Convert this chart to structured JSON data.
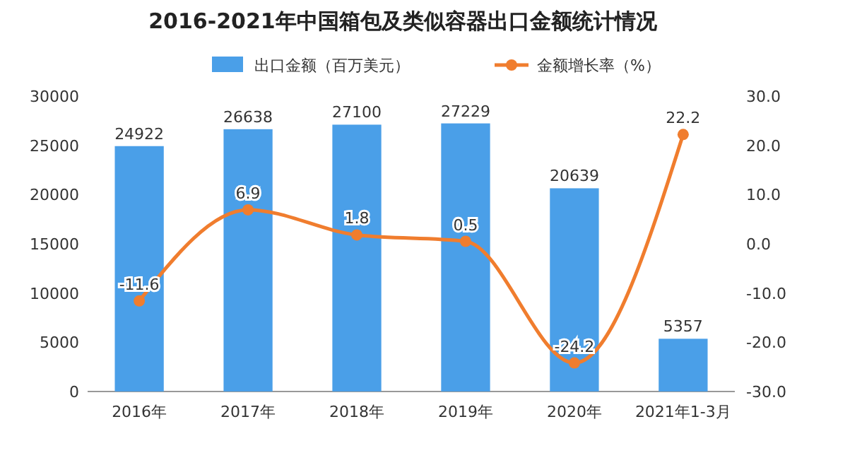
{
  "chart_data": {
    "type": "bar",
    "title": "2016-2021年中国箱包及类似容器出口金额统计情况",
    "categories": [
      "2016年",
      "2017年",
      "2018年",
      "2019年",
      "2020年",
      "2021年1-3月"
    ],
    "series": [
      {
        "name": "出口金额（百万美元）",
        "color": "#4a9fe8",
        "values": [
          24922,
          26638,
          27100,
          27229,
          20639,
          5357
        ]
      },
      {
        "name": "金额增长率（%）",
        "type": "line",
        "axis": "y2",
        "color": "#f07d2e",
        "values": [
          -11.6,
          6.9,
          1.8,
          0.5,
          -24.2,
          22.2
        ]
      }
    ],
    "ylim": [
      0,
      30000
    ],
    "yticks": [
      0,
      5000,
      10000,
      15000,
      20000,
      25000,
      30000
    ],
    "y2lim": [
      -30,
      30
    ],
    "y2ticks": [
      {
        "value": -30,
        "label": "-30.0"
      },
      {
        "value": -20,
        "label": "-20.0"
      },
      {
        "value": -10,
        "label": "-10.0"
      },
      {
        "value": 0,
        "label": "0.0"
      },
      {
        "value": 10,
        "label": "10.0"
      },
      {
        "value": 20,
        "label": "20.0"
      },
      {
        "value": 30,
        "label": "30.0"
      }
    ],
    "data_labels": true,
    "legend": "top",
    "marker": "circle",
    "grid": false
  }
}
